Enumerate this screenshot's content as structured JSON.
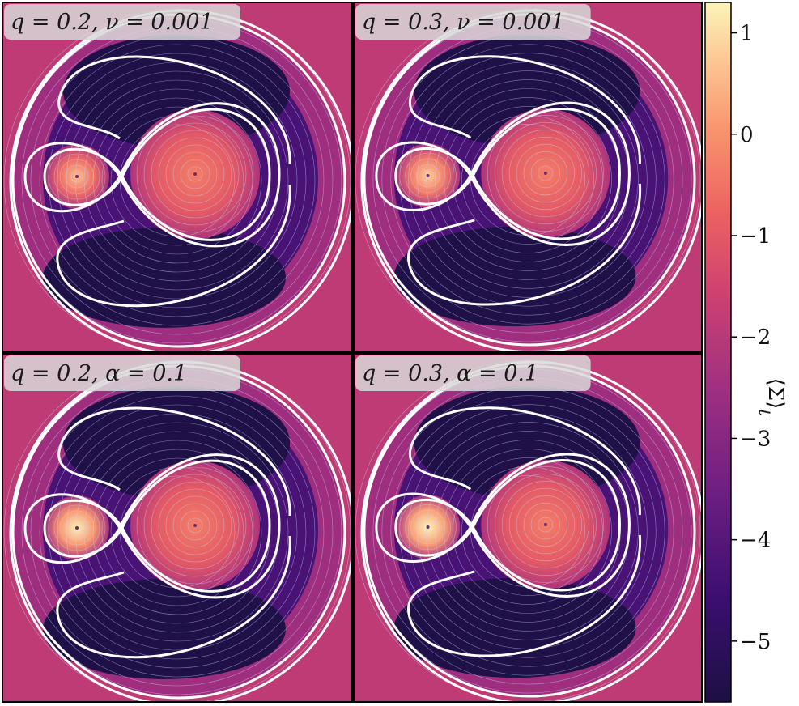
{
  "chart_data": {
    "type": "heatmap",
    "layout": "2x2 grid",
    "panels": [
      {
        "label": "q = 0.2,  ν = 0.001",
        "q": 0.2,
        "param": "ν",
        "param_value": 0.001,
        "secondary_max": 0.6
      },
      {
        "label": "q = 0.3,  ν = 0.001",
        "q": 0.3,
        "param": "ν",
        "param_value": 0.001,
        "secondary_max": 0.8
      },
      {
        "label": "q = 0.2,  α = 0.1",
        "q": 0.2,
        "param": "α",
        "param_value": 0.1,
        "secondary_max": 1.25
      },
      {
        "label": "q = 0.3,  α = 0.1",
        "q": 0.3,
        "param": "α",
        "param_value": 0.1,
        "secondary_max": 1.35
      }
    ],
    "colorbar": {
      "label": "⟨Σ⟩",
      "label_subscript": "t",
      "ticks": [
        1,
        0,
        -1,
        -2,
        -3,
        -4,
        -5
      ],
      "tick_labels": [
        "1",
        "0",
        "−1",
        "−2",
        "−3",
        "−4",
        "−5"
      ],
      "range": [
        -5.6,
        1.3
      ],
      "colormap": "magma-like"
    },
    "primary_max": -0.3,
    "gap_min": -5.5,
    "outer_background": -1.9,
    "overlay": "white streamlines and white contour curves"
  },
  "colors": {
    "contour": "#ffffff",
    "streamline": "#c9d4ff",
    "label_box": "#d9d9d9",
    "frame": "#000000"
  }
}
